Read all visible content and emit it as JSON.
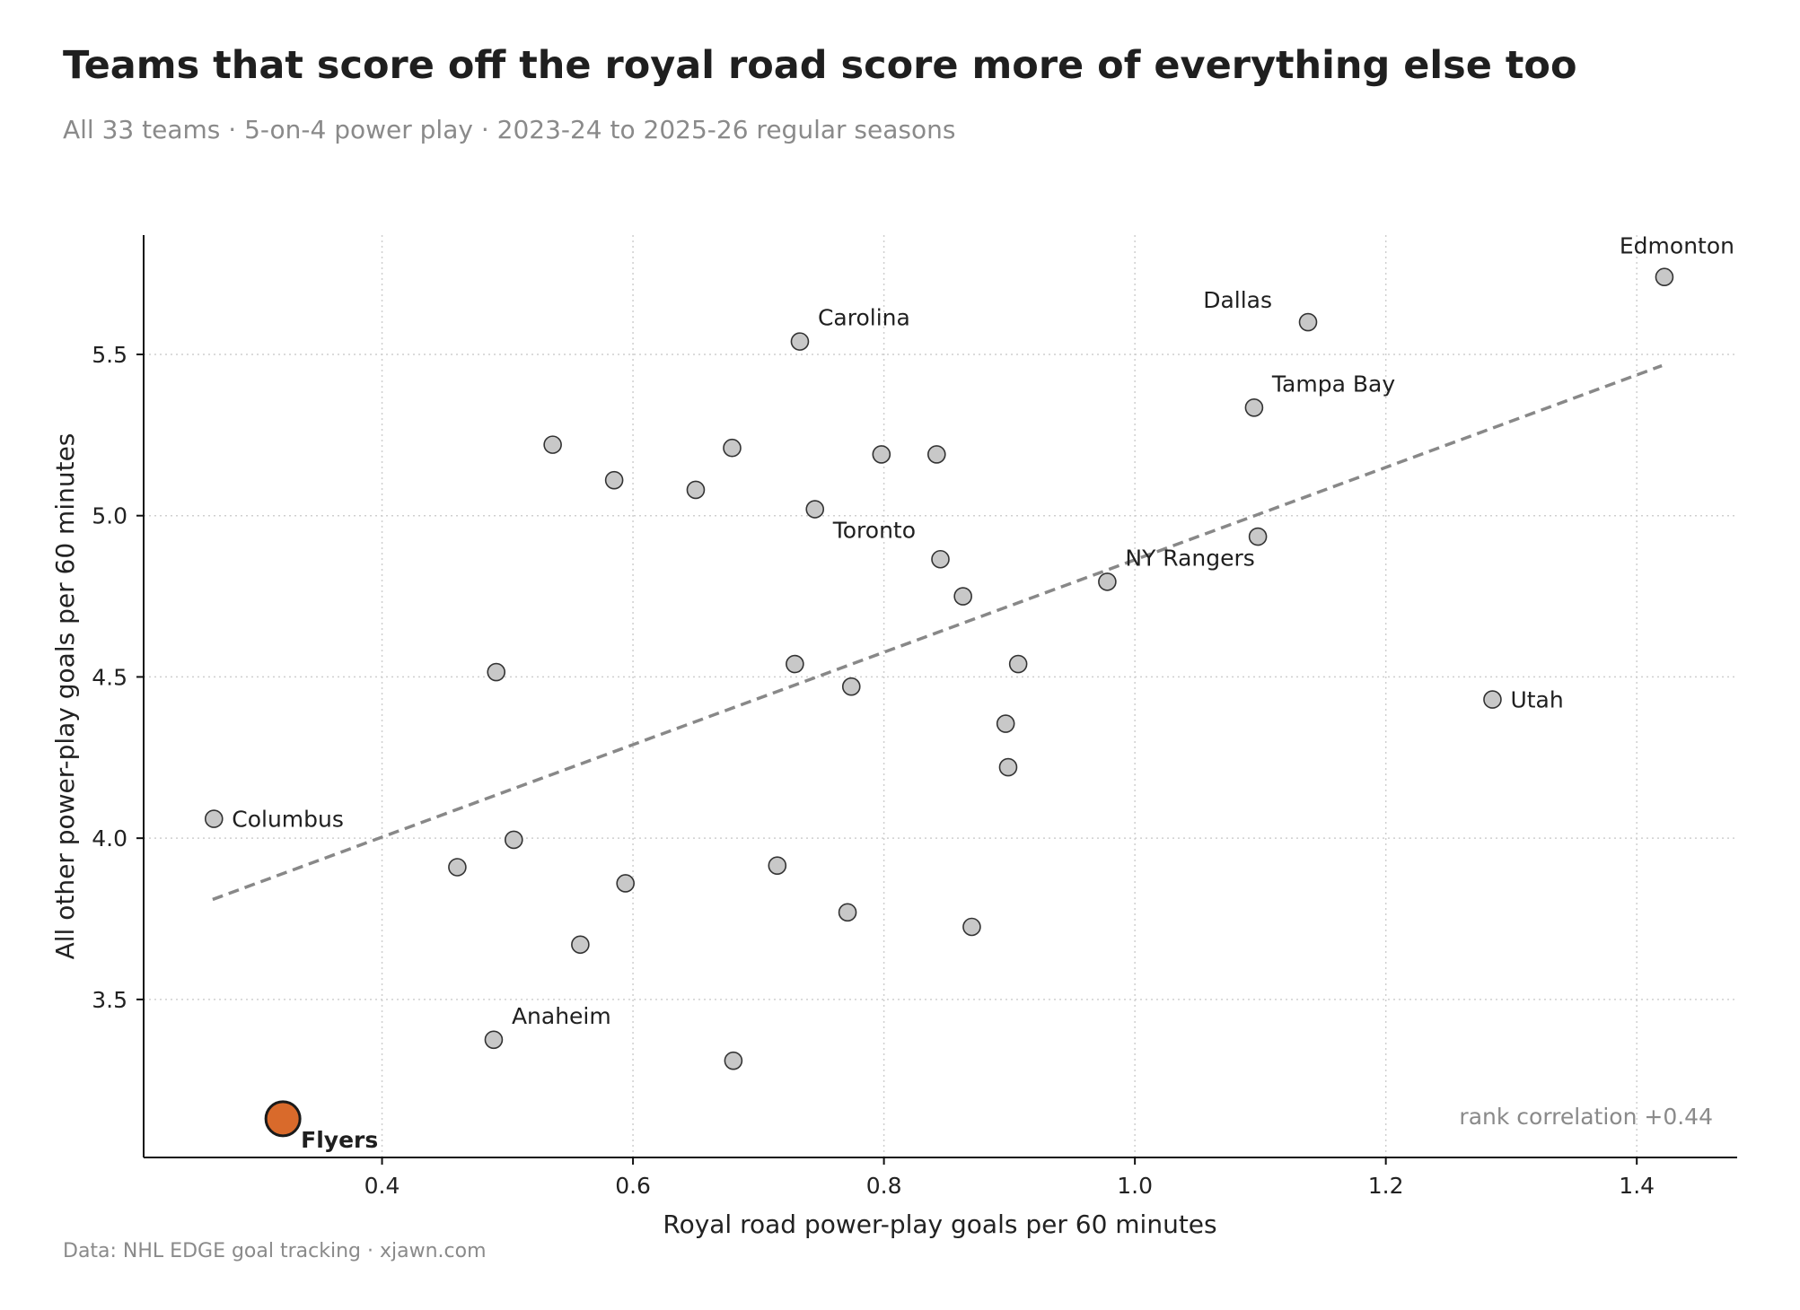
{
  "title": "Teams that score off the royal road score more of everything else too",
  "subtitle": "All 33 teams · 5-on-4 power play · 2023-24 to 2025-26 regular seasons",
  "footer": "Data: NHL EDGE goal tracking · xjawn.com",
  "chart_data": {
    "type": "scatter",
    "xlabel": "Royal road power-play goals per 60 minutes",
    "ylabel": "All other power-play goals per 60 minutes",
    "xlim": [
      0.21,
      1.48
    ],
    "ylim": [
      3.01,
      5.87
    ],
    "xticks": [
      0.4,
      0.6,
      0.8,
      1.0,
      1.2,
      1.4
    ],
    "yticks": [
      3.5,
      4.0,
      4.5,
      5.0,
      5.5
    ],
    "grid": true,
    "annotation": "rank correlation +0.44",
    "trendline": {
      "x": [
        0.265,
        1.42
      ],
      "y": [
        3.81,
        5.465
      ]
    },
    "colors": {
      "point": "#c8c8c8",
      "highlight": "#d96a2b",
      "trend": "#888888"
    },
    "points": [
      {
        "x": 1.422,
        "y": 5.74,
        "label": "Edmonton",
        "pos": "above"
      },
      {
        "x": 1.138,
        "y": 5.6,
        "label": "Dallas",
        "pos": "above-left"
      },
      {
        "x": 0.733,
        "y": 5.54,
        "label": "Carolina",
        "pos": "above-right"
      },
      {
        "x": 1.095,
        "y": 5.335,
        "label": "Tampa Bay",
        "pos": "above-right"
      },
      {
        "x": 1.098,
        "y": 4.935,
        "label": "",
        "pos": ""
      },
      {
        "x": 0.978,
        "y": 4.795,
        "label": "NY Rangers",
        "pos": "above-right"
      },
      {
        "x": 0.745,
        "y": 5.02,
        "label": "Toronto",
        "pos": "below-right"
      },
      {
        "x": 1.285,
        "y": 4.43,
        "label": "Utah",
        "pos": "right"
      },
      {
        "x": 0.266,
        "y": 4.06,
        "label": "Columbus",
        "pos": "right"
      },
      {
        "x": 0.489,
        "y": 3.375,
        "label": "Anaheim",
        "pos": "above-right"
      },
      {
        "x": 0.321,
        "y": 3.13,
        "label": "Flyers",
        "pos": "below-right",
        "highlight": true
      },
      {
        "x": 0.536,
        "y": 5.22,
        "label": "",
        "pos": ""
      },
      {
        "x": 0.585,
        "y": 5.11,
        "label": "",
        "pos": ""
      },
      {
        "x": 0.65,
        "y": 5.08,
        "label": "",
        "pos": ""
      },
      {
        "x": 0.679,
        "y": 5.21,
        "label": "",
        "pos": ""
      },
      {
        "x": 0.798,
        "y": 5.19,
        "label": "",
        "pos": ""
      },
      {
        "x": 0.842,
        "y": 5.19,
        "label": "",
        "pos": ""
      },
      {
        "x": 0.845,
        "y": 4.865,
        "label": "",
        "pos": ""
      },
      {
        "x": 0.863,
        "y": 4.75,
        "label": "",
        "pos": ""
      },
      {
        "x": 0.491,
        "y": 4.515,
        "label": "",
        "pos": ""
      },
      {
        "x": 0.729,
        "y": 4.54,
        "label": "",
        "pos": ""
      },
      {
        "x": 0.774,
        "y": 4.47,
        "label": "",
        "pos": ""
      },
      {
        "x": 0.907,
        "y": 4.54,
        "label": "",
        "pos": ""
      },
      {
        "x": 0.897,
        "y": 4.355,
        "label": "",
        "pos": ""
      },
      {
        "x": 0.899,
        "y": 4.22,
        "label": "",
        "pos": ""
      },
      {
        "x": 0.505,
        "y": 3.995,
        "label": "",
        "pos": ""
      },
      {
        "x": 0.46,
        "y": 3.91,
        "label": "",
        "pos": ""
      },
      {
        "x": 0.594,
        "y": 3.86,
        "label": "",
        "pos": ""
      },
      {
        "x": 0.715,
        "y": 3.915,
        "label": "",
        "pos": ""
      },
      {
        "x": 0.771,
        "y": 3.77,
        "label": "",
        "pos": ""
      },
      {
        "x": 0.87,
        "y": 3.725,
        "label": "",
        "pos": ""
      },
      {
        "x": 0.558,
        "y": 3.67,
        "label": "",
        "pos": ""
      },
      {
        "x": 0.68,
        "y": 3.31,
        "label": "",
        "pos": ""
      }
    ]
  }
}
